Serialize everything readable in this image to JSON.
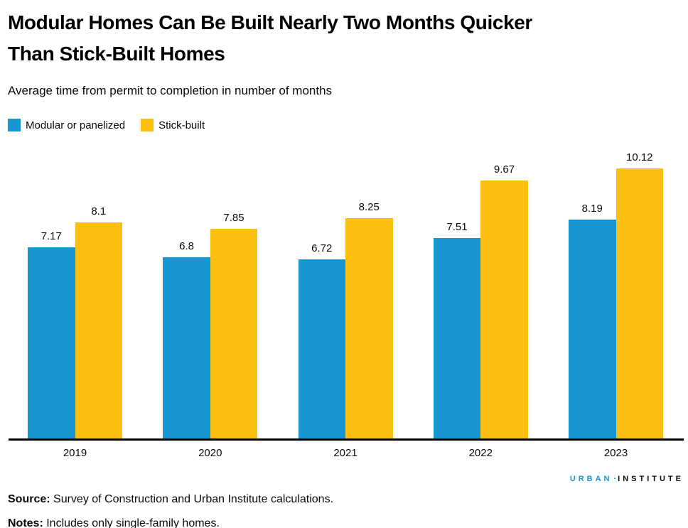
{
  "header": {
    "title_lines": [
      "Modular Homes Can Be Built Nearly Two Months Quicker",
      "Than Stick-Built Homes"
    ],
    "subtitle": "Average time from permit to completion in number of months"
  },
  "chart_data": {
    "type": "bar",
    "title": "Modular Homes Can Be Built Nearly Two Months Quicker Than Stick-Built Homes",
    "subtitle": "Average time from permit to completion in number of months",
    "categories": [
      "2019",
      "2020",
      "2021",
      "2022",
      "2023"
    ],
    "series": [
      {
        "name": "Modular or panelized",
        "color": "#1696d2",
        "values": [
          7.17,
          6.8,
          6.72,
          7.51,
          8.19
        ]
      },
      {
        "name": "Stick-built",
        "color": "#fdbf11",
        "values": [
          8.1,
          7.85,
          8.25,
          9.67,
          10.12
        ]
      }
    ],
    "xlabel": "",
    "ylabel": "",
    "ylim": [
      0,
      11.05
    ],
    "grid": false,
    "legend_position": "top-left",
    "value_labels": true
  },
  "footer": {
    "logo": {
      "part1": "URBAN",
      "separator": "·",
      "part2": "INSTITUTE"
    },
    "source_label": "Source:",
    "source_text": " Survey of Construction and Urban Institute calculations.",
    "notes_label": "Notes:",
    "notes_text": " Includes only single-family homes."
  },
  "colors": {
    "modular_blue": "#1696d2",
    "stick_yellow": "#fdbf11",
    "axis_black": "#000000",
    "logo_blue": "#1696d2"
  }
}
